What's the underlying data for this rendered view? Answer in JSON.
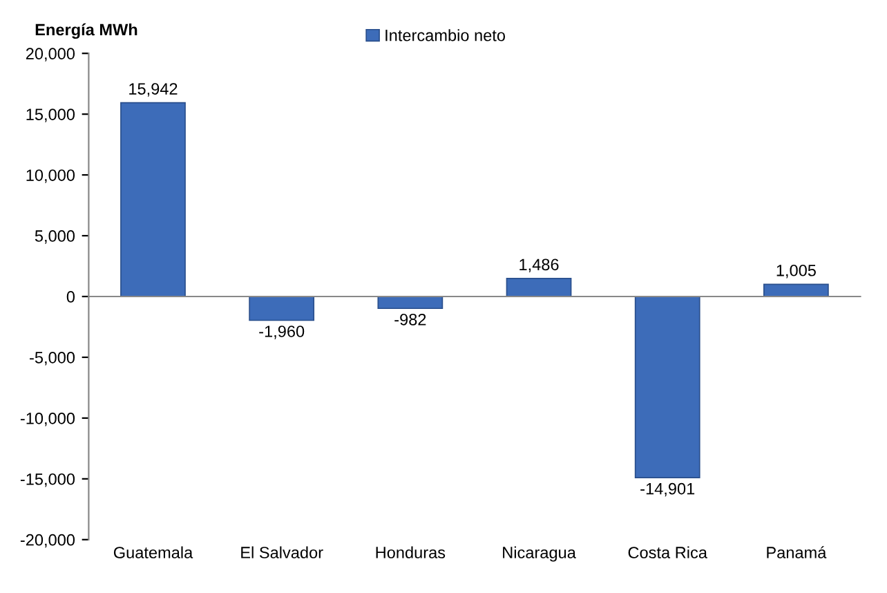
{
  "chart_data": {
    "type": "bar",
    "ylabel": "Energía MWh",
    "categories": [
      "Guatemala",
      "El Salvador",
      "Honduras",
      "Nicaragua",
      "Costa Rica",
      "Panamá"
    ],
    "series": [
      {
        "name": "Intercambio neto",
        "color": "#3d6cb9",
        "values": [
          15942,
          -1960,
          -982,
          1486,
          -14901,
          1005
        ],
        "value_labels": [
          "15,942",
          "-1,960",
          "-982",
          "1,486",
          "-14,901",
          "1,005"
        ]
      }
    ],
    "ylim": [
      -20000,
      20000
    ],
    "yticks": [
      {
        "value": -20000,
        "label": "-20,000"
      },
      {
        "value": -15000,
        "label": "-15,000"
      },
      {
        "value": -10000,
        "label": "-10,000"
      },
      {
        "value": -5000,
        "label": "-5,000"
      },
      0,
      {
        "value": 5000,
        "label": "5,000"
      },
      {
        "value": 10000,
        "label": "10,000"
      },
      {
        "value": 15000,
        "label": "15,000"
      },
      {
        "value": 20000,
        "label": "20,000"
      }
    ],
    "legend": "top"
  }
}
